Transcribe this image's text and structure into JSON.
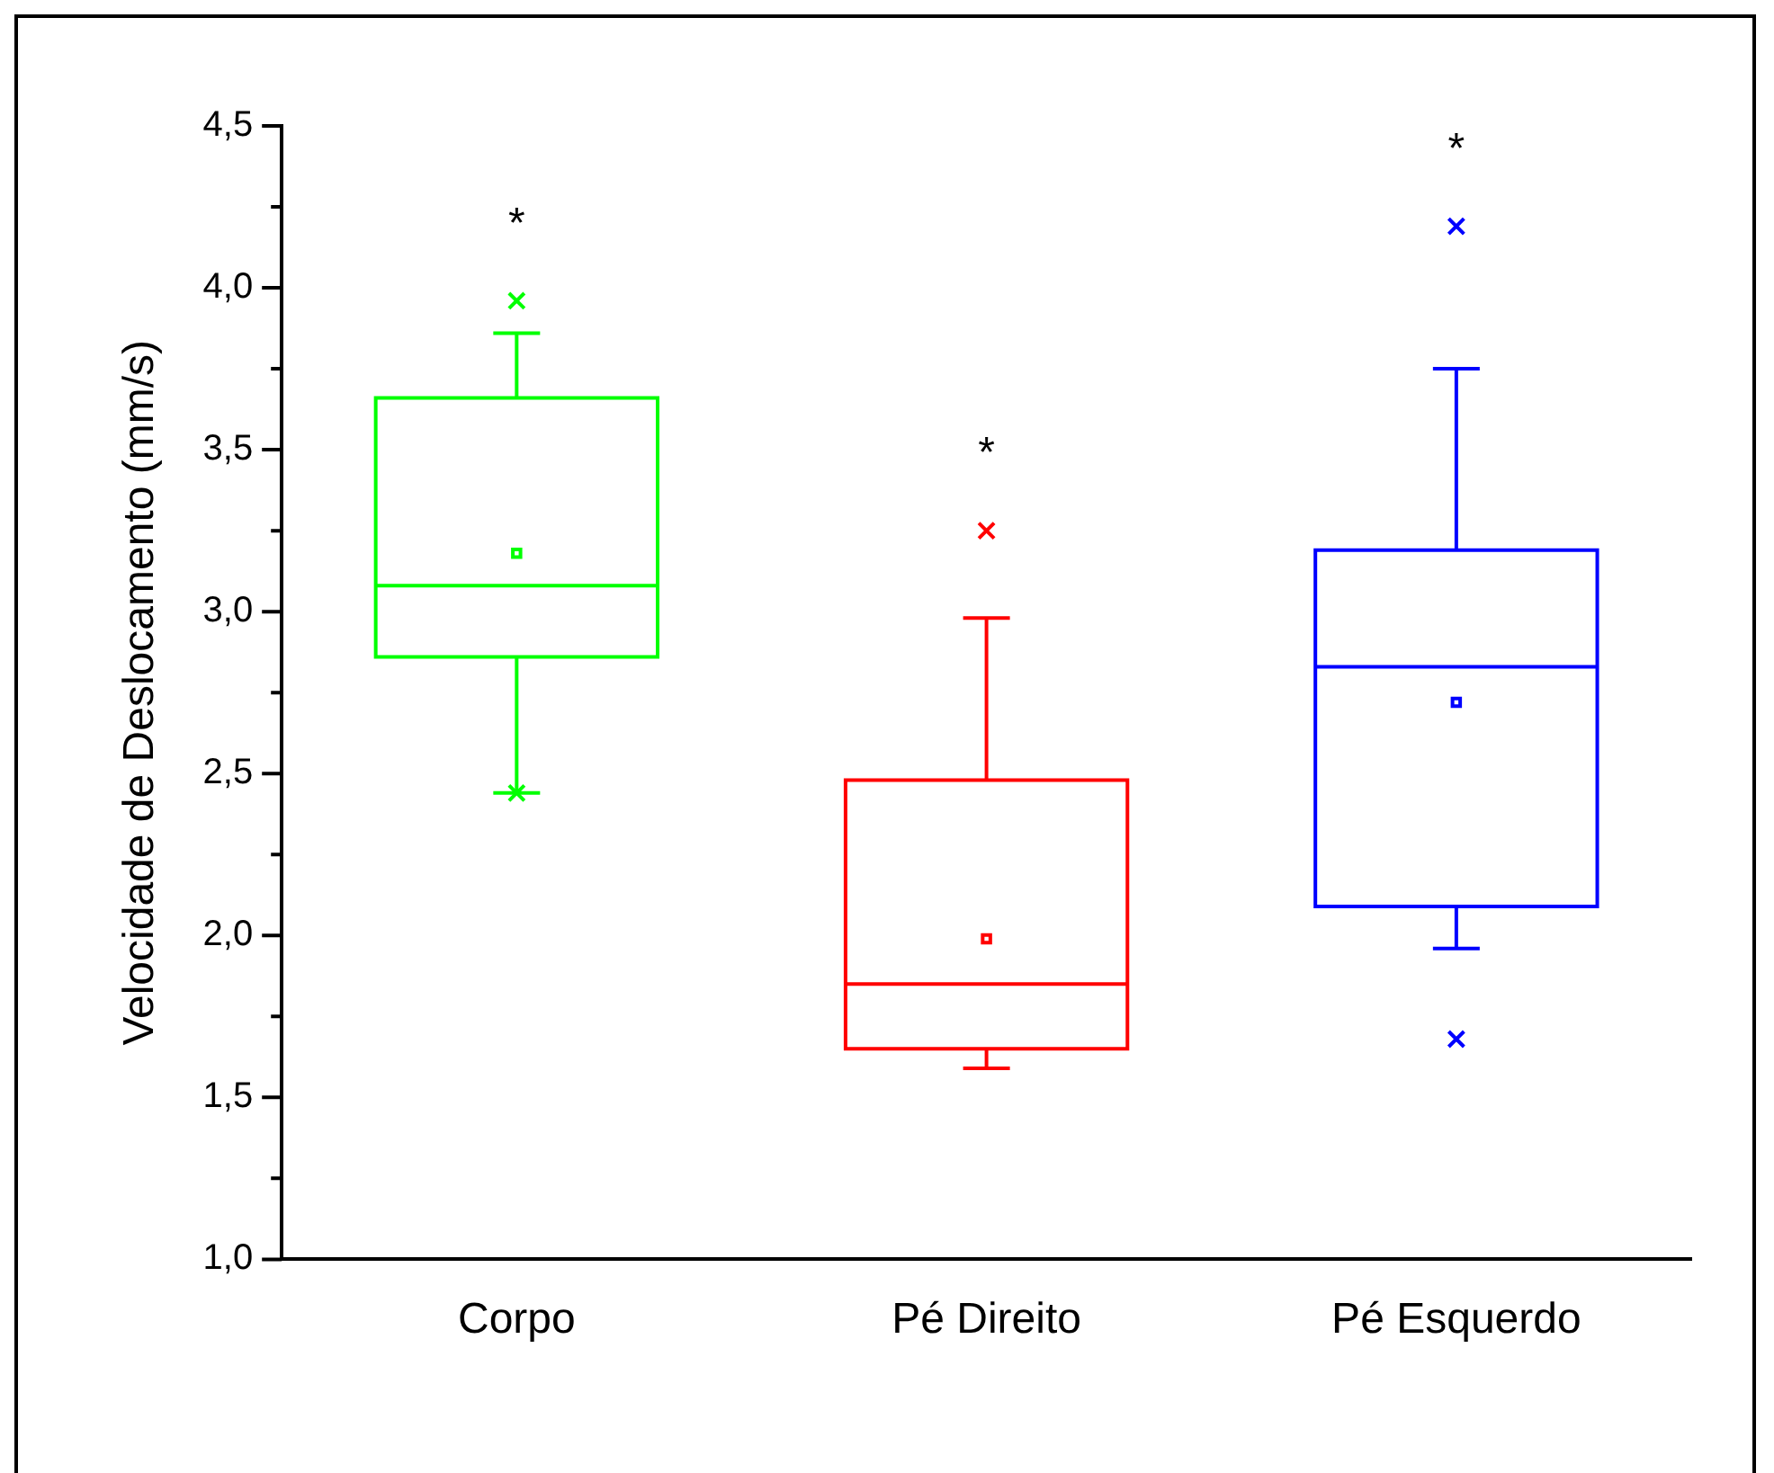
{
  "chart_data": {
    "type": "box",
    "ylabel": "Velocidade de Deslocamento (mm/s)",
    "categories": [
      "Corpo",
      "Pé Direito",
      "Pé Esquerdo"
    ],
    "series": [
      {
        "color": "#00ff00",
        "boxes": [
          {
            "low": 2.44,
            "q1": 2.86,
            "median": 3.08,
            "q3": 3.66,
            "high": 3.86,
            "mean": 3.18,
            "outliers": [
              3.96,
              2.44
            ]
          },
          null,
          null
        ]
      },
      {
        "color": "#ff0000",
        "boxes": [
          null,
          {
            "low": 1.59,
            "q1": 1.65,
            "median": 1.85,
            "q3": 2.48,
            "high": 2.98,
            "mean": 1.99,
            "outliers": [
              3.25
            ]
          },
          null
        ]
      },
      {
        "color": "#0000ff",
        "boxes": [
          null,
          null,
          {
            "low": 1.96,
            "q1": 2.09,
            "median": 2.83,
            "q3": 3.19,
            "high": 3.75,
            "mean": 2.72,
            "outliers": [
              4.19,
              1.68
            ]
          }
        ]
      }
    ],
    "ylim": [
      1,
      4.5
    ],
    "yticks": [
      {
        "value": 1,
        "label": "1,0"
      },
      {
        "value": 1.25,
        "label": null
      },
      {
        "value": 1.5,
        "label": "1,5"
      },
      {
        "value": 1.75,
        "label": null
      },
      {
        "value": 2,
        "label": "2,0"
      },
      {
        "value": 2.25,
        "label": null
      },
      {
        "value": 2.5,
        "label": "2,5"
      },
      {
        "value": 2.75,
        "label": null
      },
      {
        "value": 3,
        "label": "3,0"
      },
      {
        "value": 3.25,
        "label": null
      },
      {
        "value": 3.5,
        "label": "3,5"
      },
      {
        "value": 3.75,
        "label": null
      },
      {
        "value": 4,
        "label": "4,0"
      },
      {
        "value": 4.25,
        "label": null
      },
      {
        "value": 4.5,
        "label": "4,5"
      }
    ],
    "annotations": [
      "*",
      "*",
      "*"
    ],
    "grid": false,
    "legend": false
  }
}
